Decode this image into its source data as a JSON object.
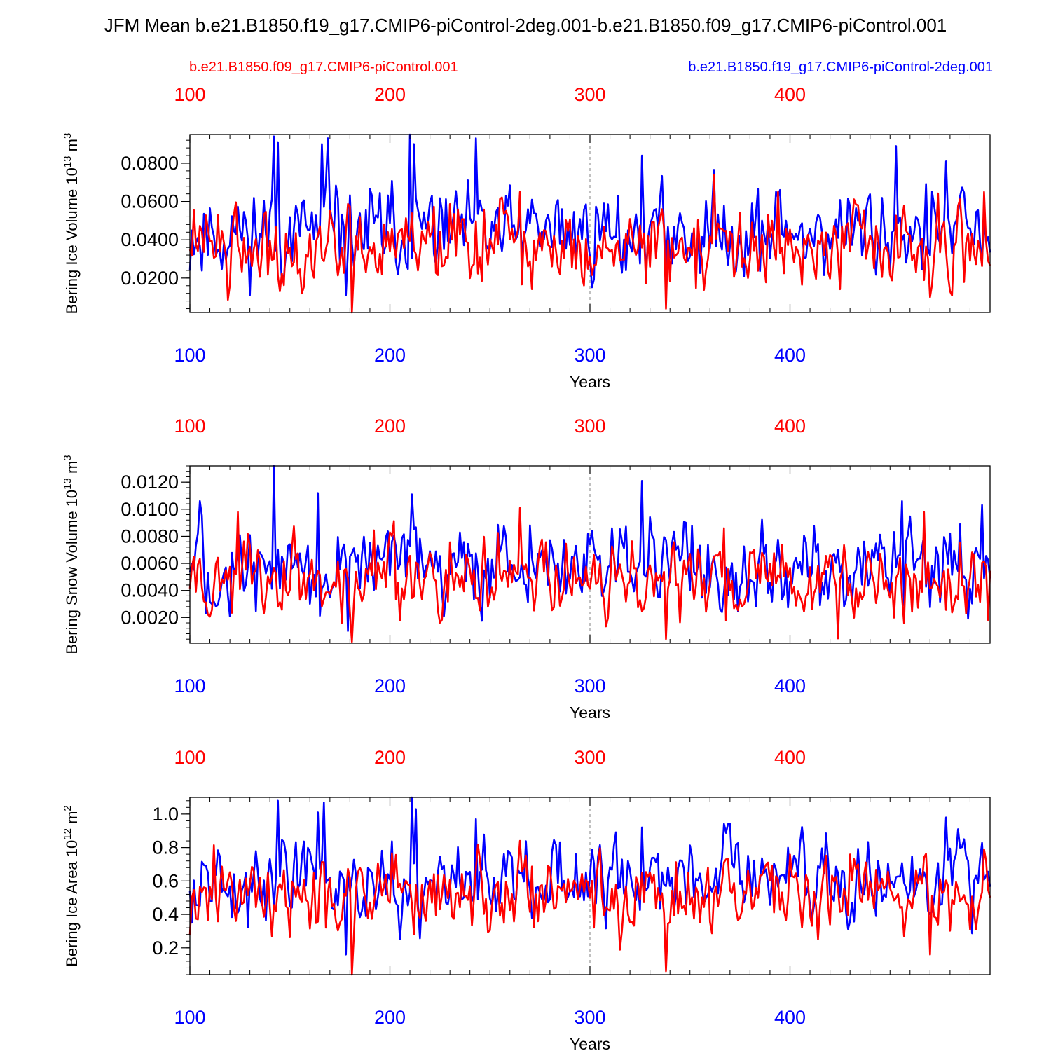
{
  "figure": {
    "title": "JFM Mean b.e21.B1850.f19_g17.CMIP6-piControl-2deg.001-b.e21.B1850.f09_g17.CMIP6-piControl.001",
    "legend_red": "b.e21.B1850.f09_g17.CMIP6-piControl.001",
    "legend_blue": "b.e21.B1850.f19_g17.CMIP6-piControl-2deg.001",
    "colors": {
      "red": "#ff0000",
      "blue": "#0000ff",
      "axis": "#000000",
      "grid": "#808080"
    }
  },
  "chart_data": [
    {
      "type": "line",
      "name": "bering-ice-volume",
      "ylabel_main": "Bering Ice Volume 10",
      "ylabel_exp": "13",
      "ylabel_unit": " m",
      "ylabel_unit_exp": "3",
      "xlabel": "Years",
      "xlim": [
        100,
        500
      ],
      "ylim": [
        0.002,
        0.095
      ],
      "yticks": [
        0.02,
        0.04,
        0.06,
        0.08
      ],
      "ytick_labels": [
        "0.0200",
        "0.0400",
        "0.0600",
        "0.0800"
      ],
      "xticks": [
        100,
        200,
        300,
        400
      ],
      "xtick_labels": [
        "100",
        "200",
        "300",
        "400"
      ],
      "gridlines_x": [
        200,
        300,
        400
      ],
      "series": [
        {
          "name": "b.e21.B1850.f19_g17.CMIP6-piControl-2deg.001",
          "color": "blue",
          "x_start": 100,
          "mean": 0.044,
          "sd": 0.0112,
          "min": 0.011,
          "max": 0.095,
          "seed": 11,
          "anchors": [
            [
              142,
              0.094
            ],
            [
              144,
              0.091
            ],
            [
              166,
              0.09
            ],
            [
              169,
              0.093
            ],
            [
              178,
              0.011
            ],
            [
              210,
              0.095
            ],
            [
              212,
              0.09
            ],
            [
              243,
              0.093
            ],
            [
              326,
              0.084
            ],
            [
              395,
              0.066
            ],
            [
              453,
              0.089
            ],
            [
              478,
              0.081
            ]
          ]
        },
        {
          "name": "b.e21.B1850.f09_g17.CMIP6-piControl.001",
          "color": "red",
          "x_start": 100,
          "mean": 0.037,
          "sd": 0.0105,
          "min": 0.002,
          "max": 0.095,
          "seed": 22,
          "anchors": [
            [
              181,
              0.002
            ],
            [
              265,
              0.065
            ],
            [
              338,
              0.004
            ],
            [
              362,
              0.074
            ],
            [
              394,
              0.065
            ],
            [
              470,
              0.01
            ],
            [
              497,
              0.065
            ]
          ]
        }
      ]
    },
    {
      "type": "line",
      "name": "bering-snow-volume",
      "ylabel_main": "Bering Snow Volume 10",
      "ylabel_exp": "13",
      "ylabel_unit": " m",
      "ylabel_unit_exp": "3",
      "xlabel": "Years",
      "xlim": [
        100,
        500
      ],
      "ylim": [
        0.0001,
        0.0132
      ],
      "yticks": [
        0.002,
        0.004,
        0.006,
        0.008,
        0.01,
        0.012
      ],
      "ytick_labels": [
        "0.0020",
        "0.0040",
        "0.0060",
        "0.0080",
        "0.0100",
        "0.0120"
      ],
      "xticks": [
        100,
        200,
        300,
        400
      ],
      "xtick_labels": [
        "100",
        "200",
        "300",
        "400"
      ],
      "gridlines_x": [
        200,
        300,
        400
      ],
      "series": [
        {
          "name": "b.e21.B1850.f19_g17.CMIP6-piControl-2deg.001",
          "color": "blue",
          "x_start": 100,
          "mean": 0.0058,
          "sd": 0.0016,
          "min": 0.001,
          "max": 0.0132,
          "seed": 33,
          "anchors": [
            [
              105,
              0.0106
            ],
            [
              142,
              0.0132
            ],
            [
              164,
              0.0112
            ],
            [
              179,
              0.001
            ],
            [
              211,
              0.0111
            ],
            [
              326,
              0.0121
            ],
            [
              456,
              0.0106
            ]
          ]
        },
        {
          "name": "b.e21.B1850.f09_g17.CMIP6-piControl.001",
          "color": "red",
          "x_start": 100,
          "mean": 0.0047,
          "sd": 0.0014,
          "min": 0.0002,
          "max": 0.0132,
          "seed": 44,
          "anchors": [
            [
              124,
              0.0098
            ],
            [
              181,
              0.0002
            ],
            [
              265,
              0.0101
            ],
            [
              338,
              0.0004
            ],
            [
              367,
              0.0086
            ],
            [
              467,
              0.0098
            ]
          ]
        }
      ]
    },
    {
      "type": "line",
      "name": "bering-ice-area",
      "ylabel_main": "Bering Ice Area 10",
      "ylabel_exp": "12",
      "ylabel_unit": " m",
      "ylabel_unit_exp": "2",
      "xlabel": "Years",
      "xlim": [
        100,
        500
      ],
      "ylim": [
        0.04,
        1.1
      ],
      "yticks": [
        0.2,
        0.4,
        0.6,
        0.8,
        1.0
      ],
      "ytick_labels": [
        "0.2",
        "0.4",
        "0.6",
        "0.8",
        "1.0"
      ],
      "xticks": [
        100,
        200,
        300,
        400
      ],
      "xtick_labels": [
        "100",
        "200",
        "300",
        "400"
      ],
      "gridlines_x": [
        200,
        300,
        400
      ],
      "series": [
        {
          "name": "b.e21.B1850.f19_g17.CMIP6-piControl-2deg.001",
          "color": "blue",
          "x_start": 100,
          "mean": 0.6,
          "sd": 0.12,
          "min": 0.15,
          "max": 1.1,
          "seed": 55,
          "anchors": [
            [
              144,
              1.08
            ],
            [
              164,
              1.01
            ],
            [
              167,
              1.07
            ],
            [
              178,
              0.16
            ],
            [
              211,
              1.1
            ],
            [
              213,
              1.03
            ],
            [
              243,
              0.97
            ],
            [
              326,
              0.92
            ],
            [
              478,
              0.98
            ]
          ]
        },
        {
          "name": "b.e21.B1850.f09_g17.CMIP6-piControl.001",
          "color": "red",
          "x_start": 100,
          "mean": 0.53,
          "sd": 0.11,
          "min": 0.04,
          "max": 1.1,
          "seed": 66,
          "anchors": [
            [
              181,
              0.04
            ],
            [
              265,
              0.84
            ],
            [
              338,
              0.06
            ],
            [
              470,
              0.16
            ],
            [
              497,
              0.79
            ]
          ]
        }
      ]
    }
  ]
}
